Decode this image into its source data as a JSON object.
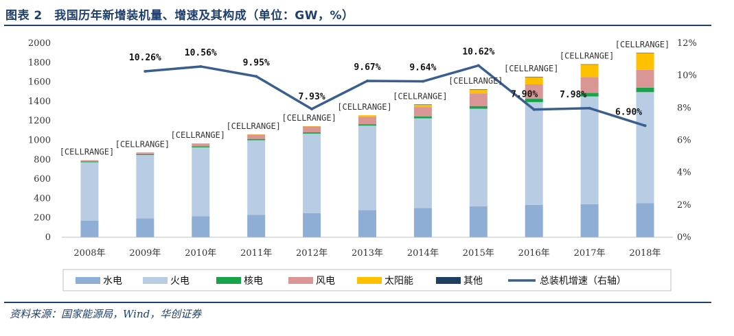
{
  "figure": {
    "title": "图表 2　我国历年新增装机量、增速及其构成（单位：GW，%）",
    "source": "资料来源：国家能源局，Wind，华创证券"
  },
  "colors": {
    "hydro": "#8eaed6",
    "thermal": "#b8cce4",
    "nuclear": "#16a34a",
    "wind": "#d99694",
    "solar": "#ffc000",
    "other": "#1f3f60",
    "growth_line": "#3a5f8f",
    "rule": "#1f3f6e"
  },
  "chart_data": {
    "type": "bar",
    "stacked": true,
    "categories": [
      "2008年",
      "2009年",
      "2010年",
      "2011年",
      "2012年",
      "2013年",
      "2014年",
      "2015年",
      "2016年",
      "2017年",
      "2018年"
    ],
    "series": [
      {
        "name": "水电",
        "values": [
          172,
          196,
          216,
          232,
          249,
          280,
          302,
          319,
          332,
          341,
          352
        ]
      },
      {
        "name": "火电",
        "values": [
          601,
          652,
          710,
          768,
          819,
          870,
          924,
          1006,
          1061,
          1110,
          1144
        ]
      },
      {
        "name": "核电",
        "values": [
          9,
          9,
          11,
          13,
          13,
          15,
          20,
          27,
          34,
          36,
          45
        ]
      },
      {
        "name": "风电",
        "values": [
          12,
          17,
          29,
          46,
          61,
          76,
          96,
          131,
          149,
          164,
          184
        ]
      },
      {
        "name": "太阳能",
        "values": [
          0,
          0,
          1,
          2,
          3,
          16,
          26,
          42,
          77,
          130,
          175
        ]
      },
      {
        "name": "其他",
        "values": [
          0,
          0,
          0,
          0,
          0,
          0,
          1,
          1,
          1,
          2,
          2
        ]
      }
    ],
    "line": {
      "name": "总装机增速（右轴）",
      "x": [
        "2009年",
        "2010年",
        "2011年",
        "2012年",
        "2013年",
        "2014年",
        "2015年",
        "2016年",
        "2017年",
        "2018年"
      ],
      "values": [
        10.26,
        10.56,
        9.95,
        7.93,
        9.67,
        9.64,
        10.62,
        7.9,
        7.98,
        6.9
      ],
      "labels": [
        "10.26%",
        "10.56%",
        "9.95%",
        "7.93%",
        "9.67%",
        "9.64%",
        "10.62%",
        "7.90%",
        "7.98%",
        "6.90%"
      ]
    },
    "bar_labels": [
      "[CELLRANGE]",
      "[CELLRANGE]",
      "[CELLRANGE]",
      "[CELLRANGE]",
      "[CELLRANGE]",
      "[CELLRANGE]",
      "[CELLRANGE]",
      "[CELLRANGE]",
      "[CELLRANGE]",
      "[CELLRANGE]",
      "[CELLRANGE]"
    ],
    "ylim": [
      0,
      2000
    ],
    "y_ticks": [
      0,
      200,
      400,
      600,
      800,
      1000,
      1200,
      1400,
      1600,
      1800,
      2000
    ],
    "y2lim": [
      0,
      12
    ],
    "y2_ticks": [
      0,
      2,
      4,
      6,
      8,
      10,
      12
    ],
    "y2_tick_labels": [
      "0%",
      "2%",
      "4%",
      "6%",
      "8%",
      "10%",
      "12%"
    ],
    "legend": [
      "水电",
      "火电",
      "核电",
      "风电",
      "太阳能",
      "其他",
      "总装机增速（右轴）"
    ],
    "legend_position": "bottom",
    "grid": false
  }
}
